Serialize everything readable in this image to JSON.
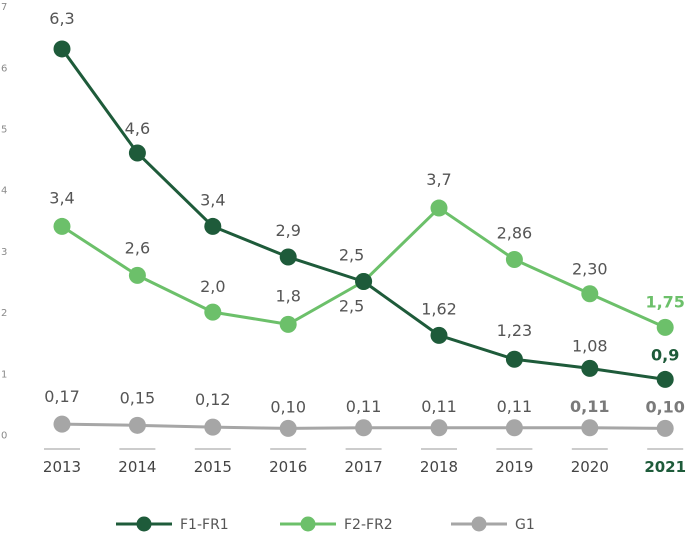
{
  "chart_data": {
    "type": "line",
    "categories": [
      "2013",
      "2014",
      "2015",
      "2016",
      "2017",
      "2018",
      "2019",
      "2020",
      "2021"
    ],
    "highlight_category": "2021",
    "y_ticks": [
      "0",
      "1",
      "2",
      "3",
      "4",
      "5",
      "6",
      "7"
    ],
    "ylim": [
      0,
      7
    ],
    "grid": false,
    "legend_position": "bottom-center",
    "series": [
      {
        "name": "F1-FR1",
        "color": "#1e5b3a",
        "values": [
          6.3,
          4.6,
          3.4,
          2.9,
          2.5,
          1.62,
          1.23,
          1.08,
          0.9
        ],
        "labels": [
          "6,3",
          "4,6",
          "3,4",
          "2,9",
          "2,5",
          "1,62",
          "1,23",
          "1,08",
          "0,9"
        ],
        "bold_labels": [
          false,
          false,
          false,
          false,
          false,
          false,
          false,
          false,
          true
        ]
      },
      {
        "name": "F2-FR2",
        "color": "#6cc06a",
        "values": [
          3.4,
          2.6,
          2.0,
          1.8,
          2.5,
          3.7,
          2.86,
          2.3,
          1.75
        ],
        "labels": [
          "3,4",
          "2,6",
          "2,0",
          "1,8",
          "2,5",
          "3,7",
          "2,86",
          "2,30",
          "1,75"
        ],
        "bold_labels": [
          false,
          false,
          false,
          false,
          false,
          false,
          false,
          false,
          true
        ]
      },
      {
        "name": "G1",
        "color": "#a6a6a6",
        "values": [
          0.17,
          0.15,
          0.12,
          0.1,
          0.11,
          0.11,
          0.11,
          0.11,
          0.1
        ],
        "labels": [
          "0,17",
          "0,15",
          "0,12",
          "0,10",
          "0,11",
          "0,11",
          "0,11",
          "0,11",
          "0,10"
        ],
        "bold_labels": [
          false,
          false,
          false,
          false,
          false,
          false,
          false,
          true,
          true
        ]
      }
    ]
  }
}
